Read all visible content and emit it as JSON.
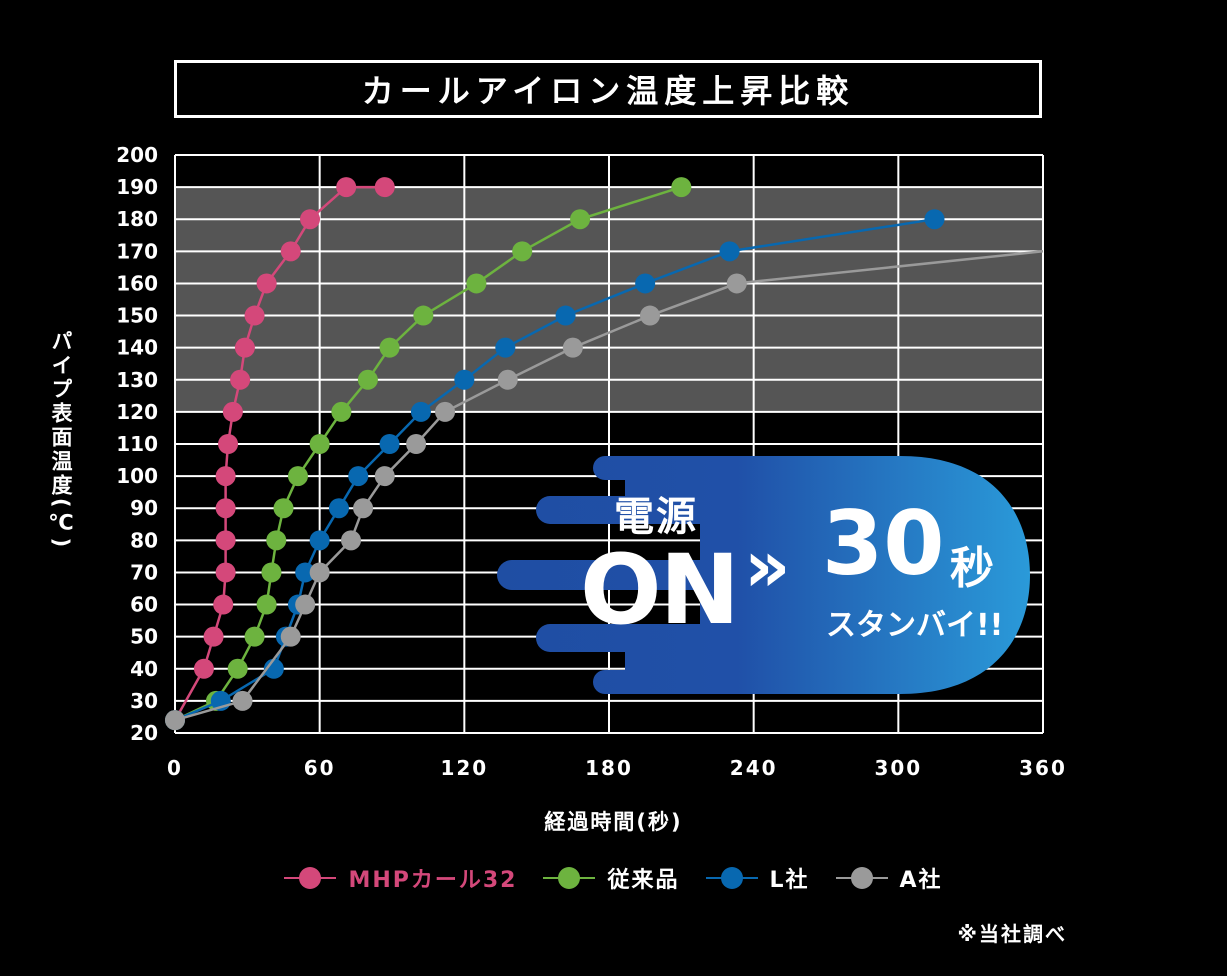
{
  "title": "カールアイロン温度上昇比較",
  "chart_data": {
    "type": "line",
    "title": "カールアイロン温度上昇比較",
    "xlabel": "経過時間(秒)",
    "ylabel": "パイプ表面温度(℃)",
    "xlim": [
      0,
      360
    ],
    "ylim": [
      20,
      200
    ],
    "xticks": [
      "0",
      "60",
      "120",
      "180",
      "240",
      "300",
      "360"
    ],
    "yticks": [
      "20",
      "30",
      "40",
      "50",
      "60",
      "70",
      "80",
      "90",
      "100",
      "110",
      "120",
      "130",
      "140",
      "150",
      "160",
      "170",
      "180",
      "190",
      "200"
    ],
    "highlight_band": [
      120,
      190
    ],
    "series": [
      {
        "name": "MHPカール32",
        "color": "#d4487a",
        "x": [
          0,
          12,
          16,
          20,
          21,
          21,
          21,
          21,
          22,
          24,
          27,
          29,
          33,
          38,
          48,
          56,
          71,
          87
        ],
        "y": [
          24,
          40,
          50,
          60,
          70,
          80,
          90,
          100,
          110,
          120,
          130,
          140,
          150,
          160,
          170,
          180,
          190,
          190
        ]
      },
      {
        "name": "従来品",
        "color": "#6db33f",
        "x": [
          0,
          17,
          26,
          33,
          38,
          40,
          42,
          45,
          51,
          60,
          69,
          80,
          89,
          103,
          125,
          144,
          168,
          210
        ],
        "y": [
          24,
          30,
          40,
          50,
          60,
          70,
          80,
          90,
          100,
          110,
          120,
          130,
          140,
          150,
          160,
          170,
          180,
          190
        ]
      },
      {
        "name": "L社",
        "color": "#0868b0",
        "x": [
          0,
          19,
          41,
          46,
          51,
          54,
          60,
          68,
          76,
          89,
          102,
          120,
          137,
          162,
          195,
          230,
          315
        ],
        "y": [
          24,
          30,
          40,
          50,
          60,
          70,
          80,
          90,
          100,
          110,
          120,
          130,
          140,
          150,
          160,
          170,
          180
        ]
      },
      {
        "name": "A社",
        "color": "#9a9a9a",
        "x": [
          0,
          28,
          48,
          54,
          60,
          73,
          78,
          87,
          100,
          112,
          138,
          165,
          197,
          233,
          360
        ],
        "y": [
          24,
          30,
          50,
          60,
          70,
          80,
          90,
          100,
          110,
          120,
          130,
          140,
          150,
          160,
          170
        ]
      }
    ]
  },
  "promo": {
    "line1": "電源",
    "on": "ON",
    "arrow": "»",
    "seconds": "30",
    "seconds_unit": "秒",
    "standby": "スタンバイ!!"
  },
  "legend": [
    "MHPカール32",
    "従来品",
    "L社",
    "A社"
  ],
  "note": "※当社調べ"
}
